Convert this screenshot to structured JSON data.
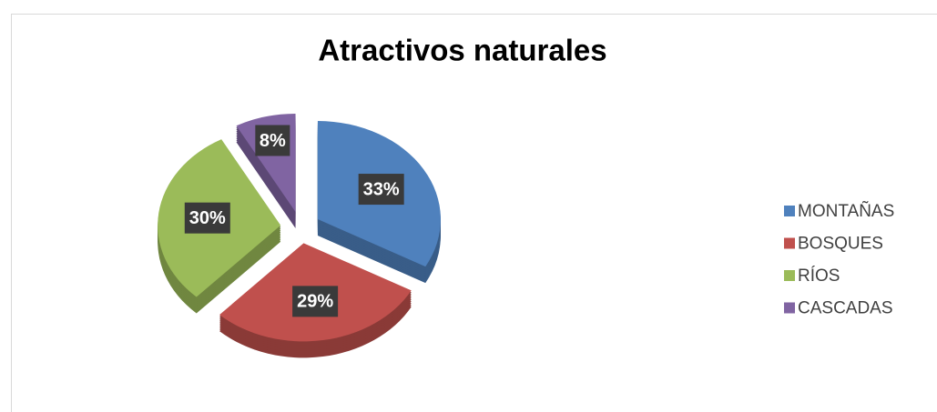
{
  "chart_data": {
    "type": "pie",
    "title": "Atractivos naturales",
    "categories": [
      "MONTAÑAS",
      "BOSQUES",
      "RÍOS",
      "CASCADAS"
    ],
    "values": [
      33,
      29,
      30,
      8
    ],
    "value_labels": [
      "33%",
      "29%",
      "30%",
      "8%"
    ],
    "colors": [
      "#4f81bd",
      "#c0504d",
      "#9bbb59",
      "#8064a2"
    ],
    "legend": "right"
  }
}
